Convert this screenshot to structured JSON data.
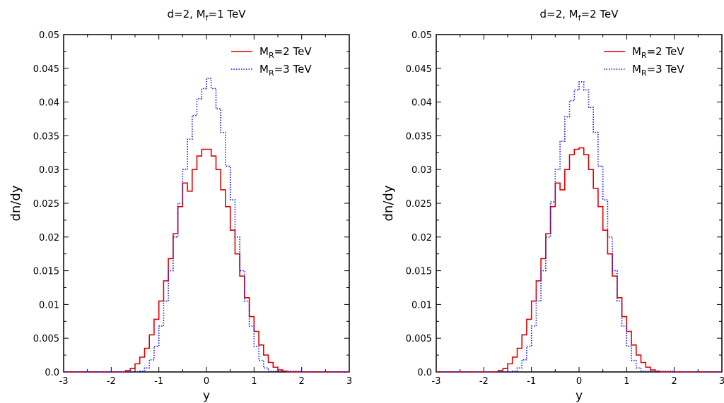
{
  "chart_data": [
    {
      "type": "line",
      "title_parts": [
        "d=2, M",
        "f",
        "=1 TeV"
      ],
      "xlabel": "y",
      "ylabel": "dn/dy",
      "xlim": [
        -3,
        3
      ],
      "ylim": [
        0,
        0.05
      ],
      "xticks": [
        "-3",
        "-2",
        "-1",
        "0",
        "1",
        "2",
        "3"
      ],
      "yticks": [
        "0.0",
        "0.005",
        "0.01",
        "0.015",
        "0.02",
        "0.025",
        "0.03",
        "0.035",
        "0.04",
        "0.045",
        "0.05"
      ],
      "legend_position": "top-right",
      "series": [
        {
          "name_parts": [
            "M",
            "R",
            "=2 TeV"
          ],
          "color": "#e00000",
          "style": "solid",
          "x": [
            -3.0,
            -2.0,
            -1.7,
            -1.6,
            -1.5,
            -1.4,
            -1.3,
            -1.2,
            -1.1,
            -1.0,
            -0.9,
            -0.8,
            -0.7,
            -0.6,
            -0.5,
            -0.4,
            -0.3,
            -0.2,
            -0.1,
            0.0,
            0.1,
            0.2,
            0.3,
            0.4,
            0.5,
            0.6,
            0.7,
            0.8,
            0.9,
            1.0,
            1.1,
            1.2,
            1.3,
            1.4,
            1.5,
            1.6,
            1.7,
            2.0,
            3.0
          ],
          "values": [
            0.0,
            0.0,
            0.0002,
            0.0005,
            0.0012,
            0.0022,
            0.0035,
            0.0055,
            0.0078,
            0.0105,
            0.0135,
            0.0168,
            0.0205,
            0.0245,
            0.028,
            0.0268,
            0.03,
            0.032,
            0.033,
            0.033,
            0.032,
            0.03,
            0.027,
            0.0245,
            0.021,
            0.0175,
            0.0142,
            0.011,
            0.0082,
            0.006,
            0.004,
            0.0025,
            0.0014,
            0.0007,
            0.0003,
            0.0001,
            0.0,
            0.0,
            0.0
          ]
        },
        {
          "name_parts": [
            "M",
            "R",
            "=3 TeV"
          ],
          "color": "#1010e0",
          "style": "dotted",
          "x": [
            -3.0,
            -2.0,
            -1.4,
            -1.3,
            -1.2,
            -1.1,
            -1.0,
            -0.9,
            -0.8,
            -0.7,
            -0.6,
            -0.5,
            -0.4,
            -0.3,
            -0.2,
            -0.1,
            0.0,
            0.1,
            0.2,
            0.3,
            0.4,
            0.5,
            0.6,
            0.7,
            0.8,
            0.9,
            1.0,
            1.1,
            1.2,
            1.3,
            2.0,
            3.0
          ],
          "values": [
            0.0,
            0.0,
            0.0001,
            0.0006,
            0.0018,
            0.0038,
            0.0068,
            0.0105,
            0.015,
            0.02,
            0.025,
            0.03,
            0.0345,
            0.038,
            0.0405,
            0.042,
            0.0435,
            0.042,
            0.039,
            0.0355,
            0.0305,
            0.0255,
            0.02,
            0.015,
            0.0105,
            0.0068,
            0.0038,
            0.0017,
            0.0006,
            0.0001,
            0.0,
            0.0
          ]
        }
      ]
    },
    {
      "type": "line",
      "title_parts": [
        "d=2, M",
        "f",
        "=2 TeV"
      ],
      "xlabel": "y",
      "ylabel": "dn/dy",
      "xlim": [
        -3,
        3
      ],
      "ylim": [
        0,
        0.05
      ],
      "xticks": [
        "-3",
        "-2",
        "-1",
        "0",
        "1",
        "2",
        "3"
      ],
      "yticks": [
        "0.0",
        "0.005",
        "0.01",
        "0.015",
        "0.02",
        "0.025",
        "0.03",
        "0.035",
        "0.04",
        "0.045",
        "0.05"
      ],
      "legend_position": "top-right",
      "series": [
        {
          "name_parts": [
            "M",
            "R",
            "=2 TeV"
          ],
          "color": "#e00000",
          "style": "solid",
          "x": [
            -3.0,
            -2.0,
            -1.7,
            -1.6,
            -1.5,
            -1.4,
            -1.3,
            -1.2,
            -1.1,
            -1.0,
            -0.9,
            -0.8,
            -0.7,
            -0.6,
            -0.5,
            -0.4,
            -0.3,
            -0.2,
            -0.1,
            0.0,
            0.1,
            0.2,
            0.3,
            0.4,
            0.5,
            0.6,
            0.7,
            0.8,
            0.9,
            1.0,
            1.1,
            1.2,
            1.3,
            1.4,
            1.5,
            1.6,
            1.7,
            2.0,
            3.0
          ],
          "values": [
            0.0,
            0.0,
            0.0002,
            0.0005,
            0.0012,
            0.0022,
            0.0035,
            0.0055,
            0.0078,
            0.0105,
            0.0135,
            0.0168,
            0.0205,
            0.0245,
            0.028,
            0.027,
            0.03,
            0.0322,
            0.033,
            0.0332,
            0.0322,
            0.03,
            0.0272,
            0.0245,
            0.021,
            0.0175,
            0.0142,
            0.011,
            0.0082,
            0.006,
            0.004,
            0.0025,
            0.0014,
            0.0007,
            0.0003,
            0.0001,
            0.0,
            0.0,
            0.0
          ]
        },
        {
          "name_parts": [
            "M",
            "R",
            "=3 TeV"
          ],
          "color": "#1010e0",
          "style": "dotted",
          "x": [
            -3.0,
            -2.0,
            -1.4,
            -1.3,
            -1.2,
            -1.1,
            -1.0,
            -0.9,
            -0.8,
            -0.7,
            -0.6,
            -0.5,
            -0.4,
            -0.3,
            -0.2,
            -0.1,
            0.0,
            0.1,
            0.2,
            0.3,
            0.4,
            0.5,
            0.6,
            0.7,
            0.8,
            0.9,
            1.0,
            1.1,
            1.2,
            1.3,
            2.0,
            3.0
          ],
          "values": [
            0.0,
            0.0,
            0.0001,
            0.0006,
            0.0018,
            0.0038,
            0.0068,
            0.0105,
            0.015,
            0.02,
            0.0252,
            0.03,
            0.0342,
            0.0378,
            0.0402,
            0.0418,
            0.043,
            0.0418,
            0.0392,
            0.0355,
            0.0305,
            0.0255,
            0.02,
            0.015,
            0.0105,
            0.0068,
            0.0038,
            0.0017,
            0.0006,
            0.0001,
            0.0,
            0.0
          ]
        }
      ]
    }
  ]
}
